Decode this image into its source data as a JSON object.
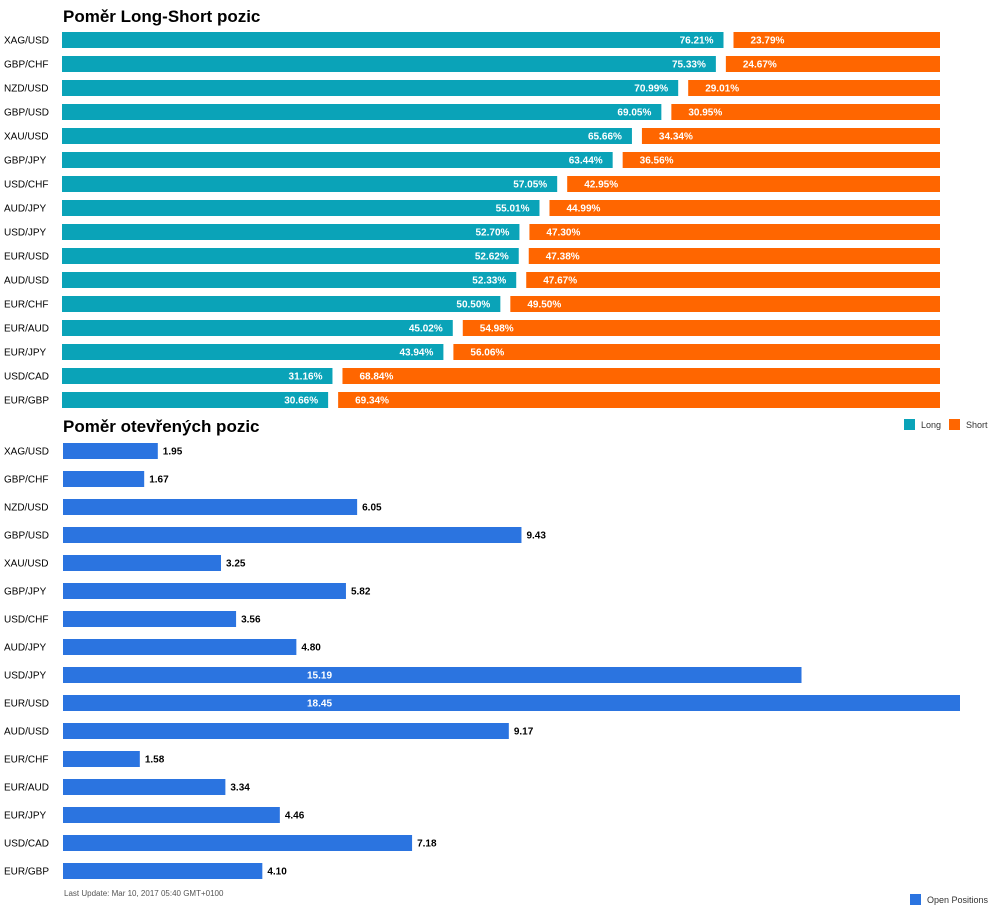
{
  "colors": {
    "long": "#0aa3b8",
    "short": "#ff6600",
    "open": "#2b74e0"
  },
  "chart_data": [
    {
      "type": "bar",
      "orientation": "horizontal",
      "stacked": true,
      "title": "Poměr Long-Short pozic",
      "categories": [
        "XAG/USD",
        "GBP/CHF",
        "NZD/USD",
        "GBP/USD",
        "XAU/USD",
        "GBP/JPY",
        "USD/CHF",
        "AUD/JPY",
        "USD/JPY",
        "EUR/USD",
        "AUD/USD",
        "EUR/CHF",
        "EUR/AUD",
        "EUR/JPY",
        "USD/CAD",
        "EUR/GBP"
      ],
      "series": [
        {
          "name": "Long",
          "values": [
            76.21,
            75.33,
            70.99,
            69.05,
            65.66,
            63.44,
            57.05,
            55.01,
            52.7,
            52.62,
            52.33,
            50.5,
            45.02,
            43.94,
            31.16,
            30.66
          ]
        },
        {
          "name": "Short",
          "values": [
            23.79,
            24.67,
            29.01,
            30.95,
            34.34,
            36.56,
            42.95,
            44.99,
            47.3,
            47.38,
            47.67,
            49.5,
            54.98,
            56.06,
            68.84,
            69.34
          ]
        }
      ],
      "legend": "bottom-right"
    },
    {
      "type": "bar",
      "orientation": "horizontal",
      "title": "Poměr otevřených pozic",
      "categories": [
        "XAG/USD",
        "GBP/CHF",
        "NZD/USD",
        "GBP/USD",
        "XAU/USD",
        "GBP/JPY",
        "USD/CHF",
        "AUD/JPY",
        "USD/JPY",
        "EUR/USD",
        "AUD/USD",
        "EUR/CHF",
        "EUR/AUD",
        "EUR/JPY",
        "USD/CAD",
        "EUR/GBP"
      ],
      "series": [
        {
          "name": "Open Positions",
          "values": [
            1.95,
            1.67,
            6.05,
            9.43,
            3.25,
            5.82,
            3.56,
            4.8,
            15.19,
            18.45,
            9.17,
            1.58,
            3.34,
            4.46,
            7.18,
            4.1
          ]
        }
      ],
      "legend": "bottom-right"
    }
  ],
  "footer": {
    "last_update": "Last Update: Mar 10, 2017 05:40 GMT+0100"
  }
}
